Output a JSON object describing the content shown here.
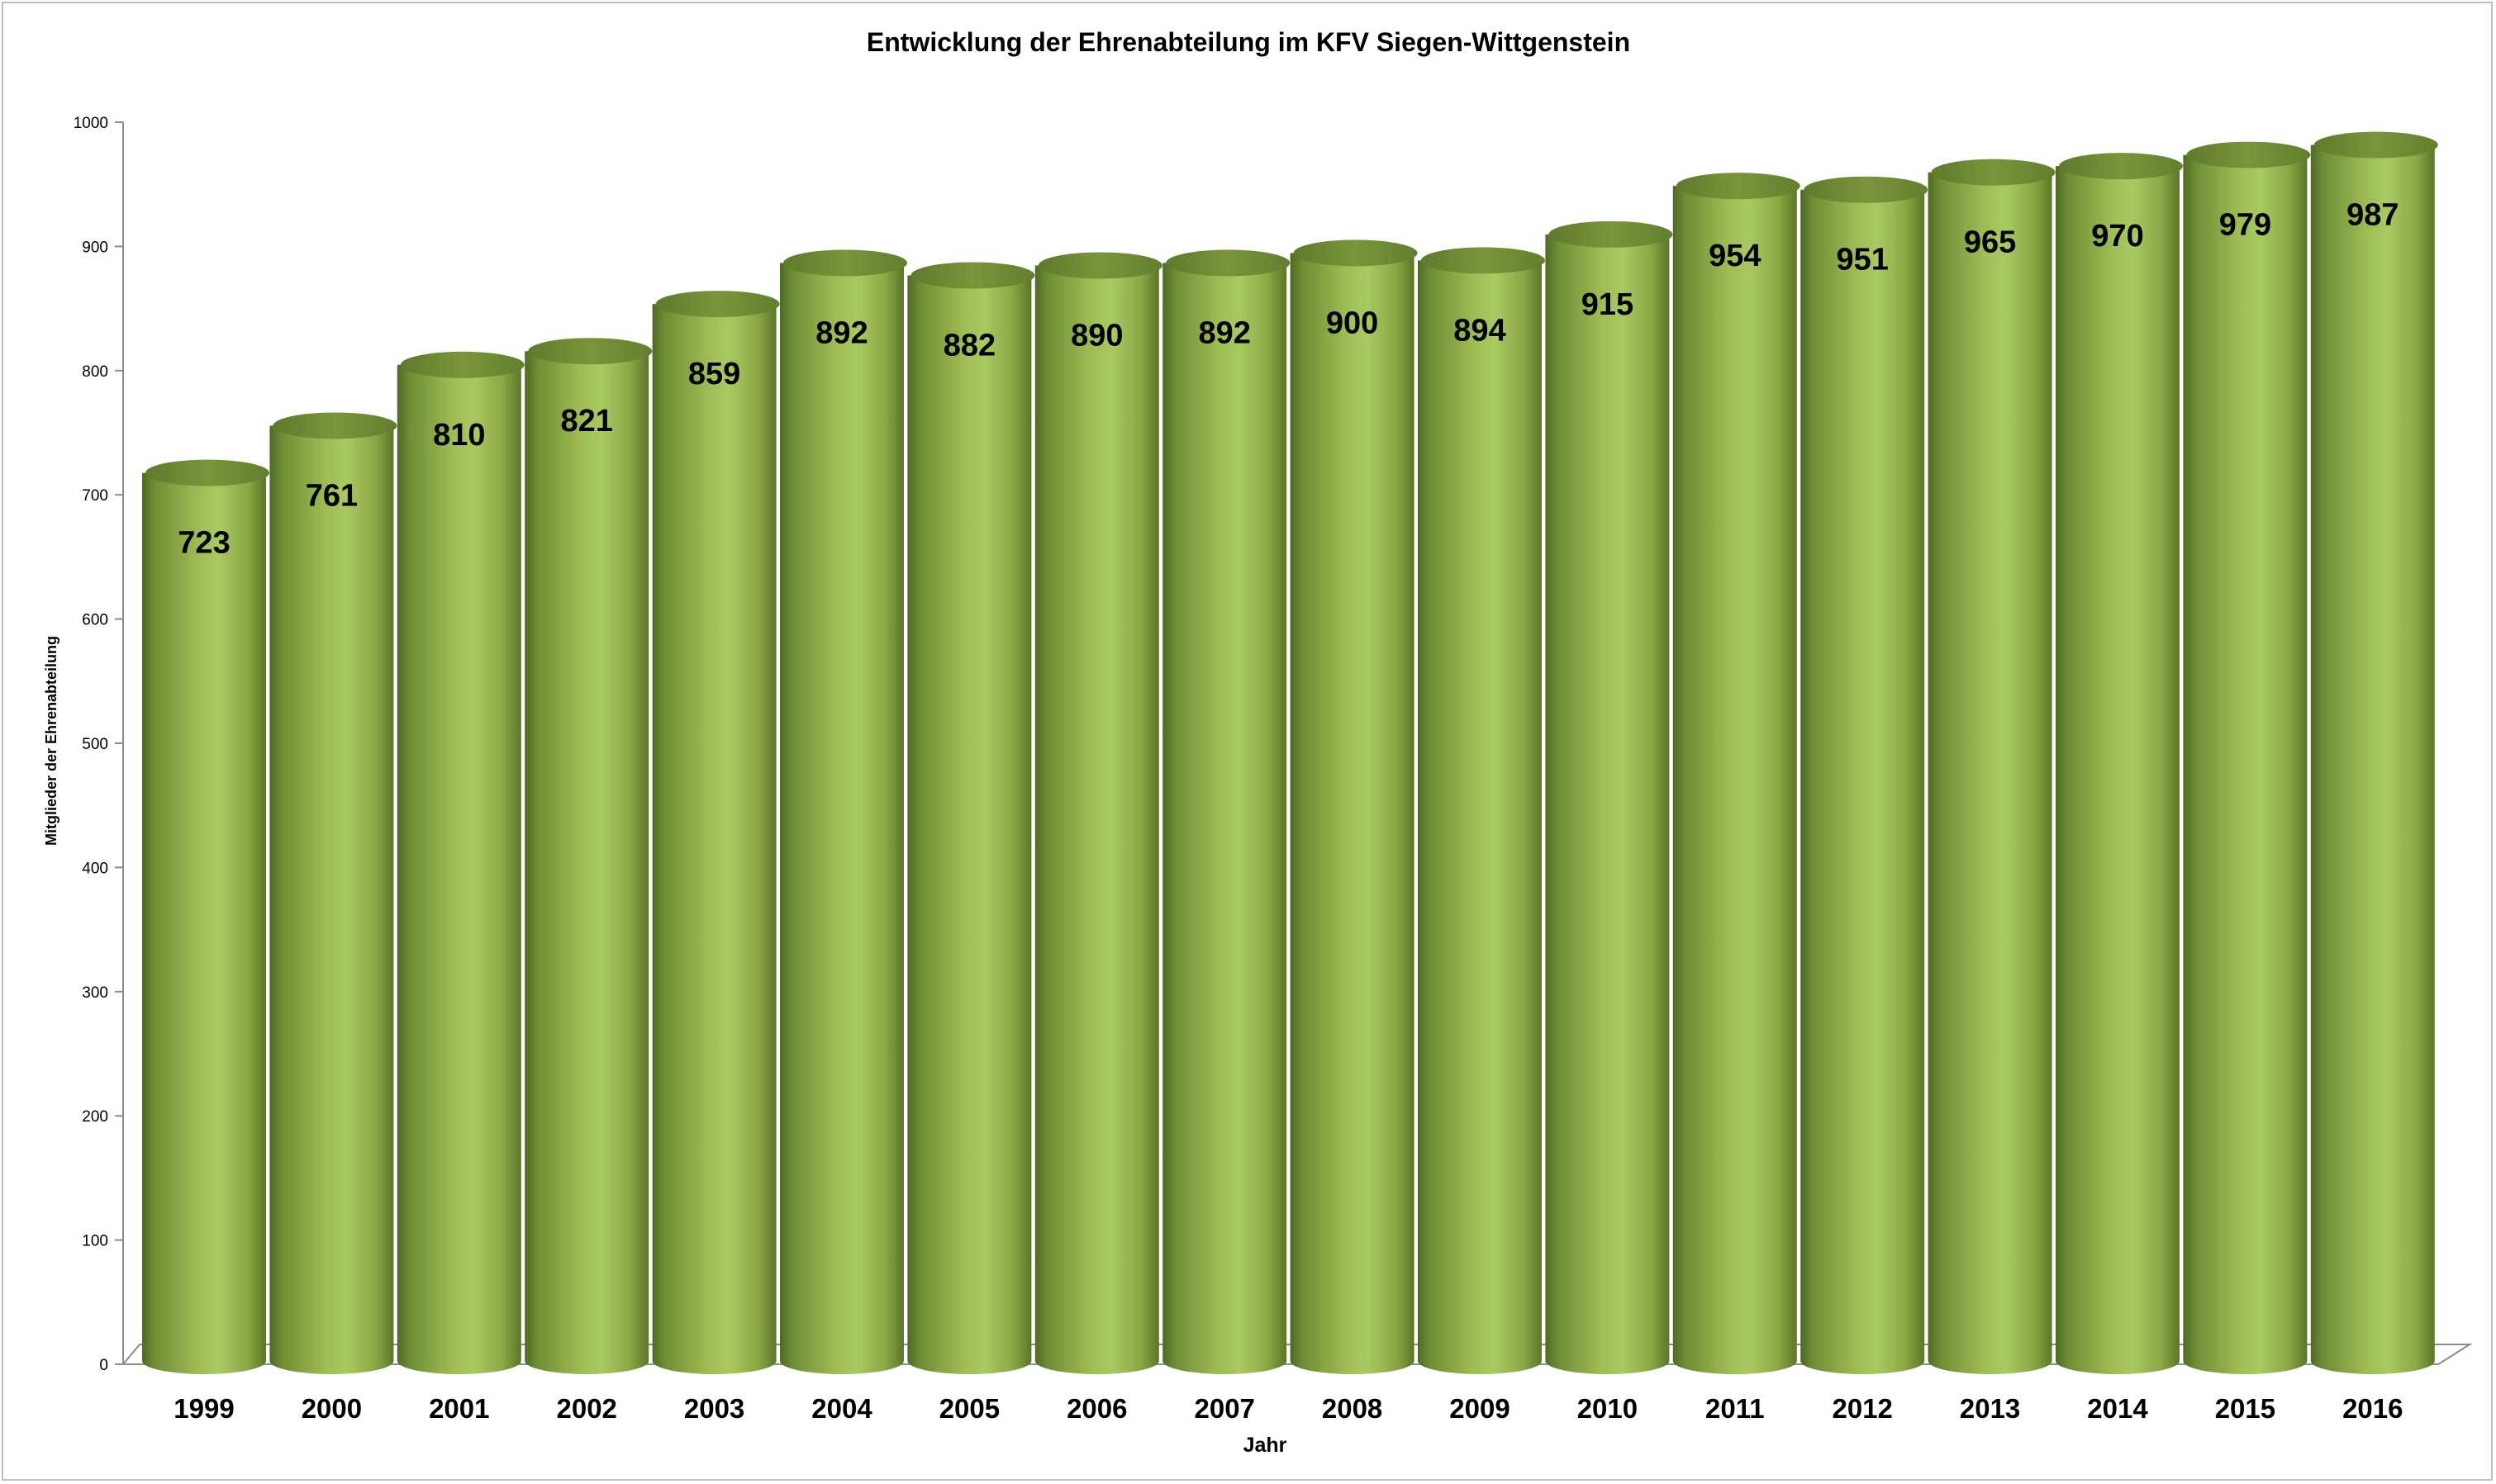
{
  "chart_data": {
    "type": "bar",
    "style": "3d-cylinder",
    "title": "Entwicklung der Ehrenabteilung im KFV Siegen-Wittgenstein",
    "xlabel": "Jahr",
    "ylabel": "Mitglieder der Ehrenabteilung",
    "categories": [
      "1999",
      "2000",
      "2001",
      "2002",
      "2003",
      "2004",
      "2005",
      "2006",
      "2007",
      "2008",
      "2009",
      "2010",
      "2011",
      "2012",
      "2013",
      "2014",
      "2015",
      "2016"
    ],
    "values": [
      723,
      761,
      810,
      821,
      859,
      892,
      882,
      890,
      892,
      900,
      894,
      915,
      954,
      951,
      965,
      970,
      979,
      987
    ],
    "ylim": [
      0,
      1000
    ],
    "yticks": [
      0,
      100,
      200,
      300,
      400,
      500,
      600,
      700,
      800,
      900,
      1000
    ],
    "grid": false,
    "legend": "none",
    "data_labels": true,
    "colors": {
      "bar_dark": "#4f6a24",
      "bar_mid": "#7f9c3c",
      "bar_light": "#a6c65e",
      "bar_top": "#6f8a35",
      "axis": "#8c8c8c"
    }
  }
}
